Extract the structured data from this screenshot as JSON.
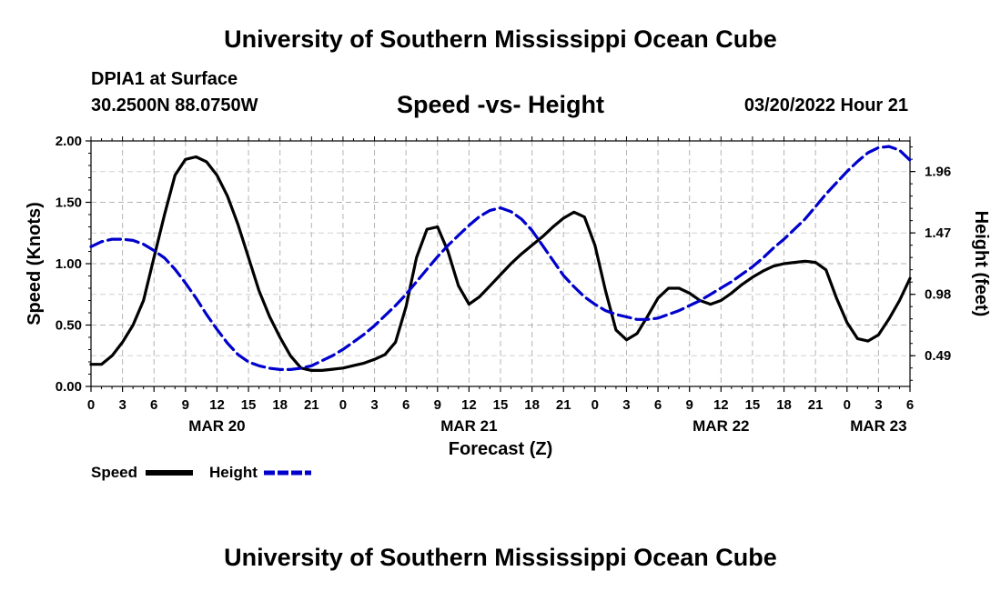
{
  "header": {
    "title": "University of Southern Mississippi Ocean Cube",
    "station": "DPIA1 at Surface",
    "coords": "30.2500N  88.0750W",
    "subtitle": "Speed -vs- Height",
    "datetime": "03/20/2022 Hour 21"
  },
  "footer": {
    "title": "University of Southern Mississippi Ocean Cube"
  },
  "chart_data": {
    "type": "line",
    "title": "Speed -vs- Height",
    "xlabel": "Forecast (Z)",
    "ylabel": "Speed (Knots)",
    "y2label": "Height (feet)",
    "x_range": [
      0,
      78
    ],
    "ylim": [
      0,
      2
    ],
    "y2lim": [
      0.245,
      2.204
    ],
    "x_tick_labels": [
      "0",
      "3",
      "6",
      "9",
      "12",
      "15",
      "18",
      "21",
      "0",
      "3",
      "6",
      "9",
      "12",
      "15",
      "18",
      "21",
      "0",
      "3",
      "6",
      "9",
      "12",
      "15",
      "18",
      "21",
      "0",
      "3",
      "6"
    ],
    "day_labels": [
      {
        "label": "MAR 20",
        "x": 12
      },
      {
        "label": "MAR 21",
        "x": 36
      },
      {
        "label": "MAR 22",
        "x": 60
      },
      {
        "label": "MAR 23",
        "x": 75
      }
    ],
    "y_ticks": [
      0,
      0.5,
      1,
      1.5,
      2
    ],
    "y_tick_labels": [
      "0.00",
      "0.50",
      "1.00",
      "1.50",
      "2.00"
    ],
    "y2_ticks": [
      0.49,
      0.98,
      1.47,
      1.96
    ],
    "y2_tick_labels": [
      "0.49",
      "0.98",
      "1.47",
      "1.96"
    ],
    "grid": true,
    "legend": {
      "position": "bottom-left"
    },
    "series": [
      {
        "name": "Speed",
        "axis": "left",
        "color": "#000000",
        "dash": "solid",
        "x": [
          0,
          1,
          2,
          3,
          4,
          5,
          6,
          7,
          8,
          9,
          10,
          11,
          12,
          13,
          14,
          15,
          16,
          17,
          18,
          19,
          20,
          21,
          22,
          23,
          24,
          25,
          26,
          27,
          28,
          29,
          30,
          31,
          32,
          33,
          34,
          35,
          36,
          37,
          38,
          39,
          40,
          41,
          42,
          43,
          44,
          45,
          46,
          47,
          48,
          49,
          50,
          51,
          52,
          53,
          54,
          55,
          56,
          57,
          58,
          59,
          60,
          61,
          62,
          63,
          64,
          65,
          66,
          67,
          68,
          69,
          70,
          71,
          72,
          73,
          74,
          75,
          76,
          77,
          78
        ],
        "values": [
          0.18,
          0.18,
          0.25,
          0.36,
          0.5,
          0.7,
          1.05,
          1.4,
          1.72,
          1.85,
          1.87,
          1.83,
          1.72,
          1.55,
          1.32,
          1.05,
          0.78,
          0.57,
          0.4,
          0.25,
          0.15,
          0.13,
          0.13,
          0.14,
          0.15,
          0.17,
          0.19,
          0.22,
          0.26,
          0.36,
          0.65,
          1.05,
          1.28,
          1.3,
          1.1,
          0.82,
          0.67,
          0.73,
          0.82,
          0.91,
          1.0,
          1.08,
          1.15,
          1.22,
          1.3,
          1.37,
          1.42,
          1.38,
          1.15,
          0.78,
          0.46,
          0.38,
          0.43,
          0.57,
          0.72,
          0.8,
          0.8,
          0.76,
          0.7,
          0.67,
          0.7,
          0.76,
          0.83,
          0.89,
          0.94,
          0.98,
          1.0,
          1.01,
          1.02,
          1.01,
          0.95,
          0.72,
          0.52,
          0.39,
          0.37,
          0.42,
          0.55,
          0.7,
          0.88
        ]
      },
      {
        "name": "Height",
        "axis": "right",
        "color": "#0000cc",
        "dash": "dashed",
        "x": [
          0,
          1,
          2,
          3,
          4,
          5,
          6,
          7,
          8,
          9,
          10,
          11,
          12,
          13,
          14,
          15,
          16,
          17,
          18,
          19,
          20,
          21,
          22,
          23,
          24,
          25,
          26,
          27,
          28,
          29,
          30,
          31,
          32,
          33,
          34,
          35,
          36,
          37,
          38,
          39,
          40,
          41,
          42,
          43,
          44,
          45,
          46,
          47,
          48,
          49,
          50,
          51,
          52,
          53,
          54,
          55,
          56,
          57,
          58,
          59,
          60,
          61,
          62,
          63,
          64,
          65,
          66,
          67,
          68,
          69,
          70,
          71,
          72,
          73,
          74,
          75,
          76,
          77,
          78
        ],
        "values": [
          1.36,
          1.4,
          1.42,
          1.42,
          1.41,
          1.38,
          1.33,
          1.27,
          1.18,
          1.07,
          0.95,
          0.82,
          0.7,
          0.59,
          0.5,
          0.44,
          0.41,
          0.39,
          0.38,
          0.38,
          0.39,
          0.41,
          0.45,
          0.49,
          0.54,
          0.6,
          0.66,
          0.73,
          0.81,
          0.89,
          0.98,
          1.08,
          1.18,
          1.28,
          1.37,
          1.45,
          1.53,
          1.6,
          1.65,
          1.67,
          1.64,
          1.58,
          1.49,
          1.37,
          1.25,
          1.13,
          1.04,
          0.96,
          0.9,
          0.85,
          0.82,
          0.8,
          0.78,
          0.78,
          0.79,
          0.82,
          0.85,
          0.89,
          0.93,
          0.98,
          1.03,
          1.08,
          1.14,
          1.2,
          1.27,
          1.35,
          1.42,
          1.5,
          1.58,
          1.68,
          1.78,
          1.87,
          1.96,
          2.04,
          2.11,
          2.15,
          2.16,
          2.13,
          2.05
        ]
      }
    ]
  }
}
